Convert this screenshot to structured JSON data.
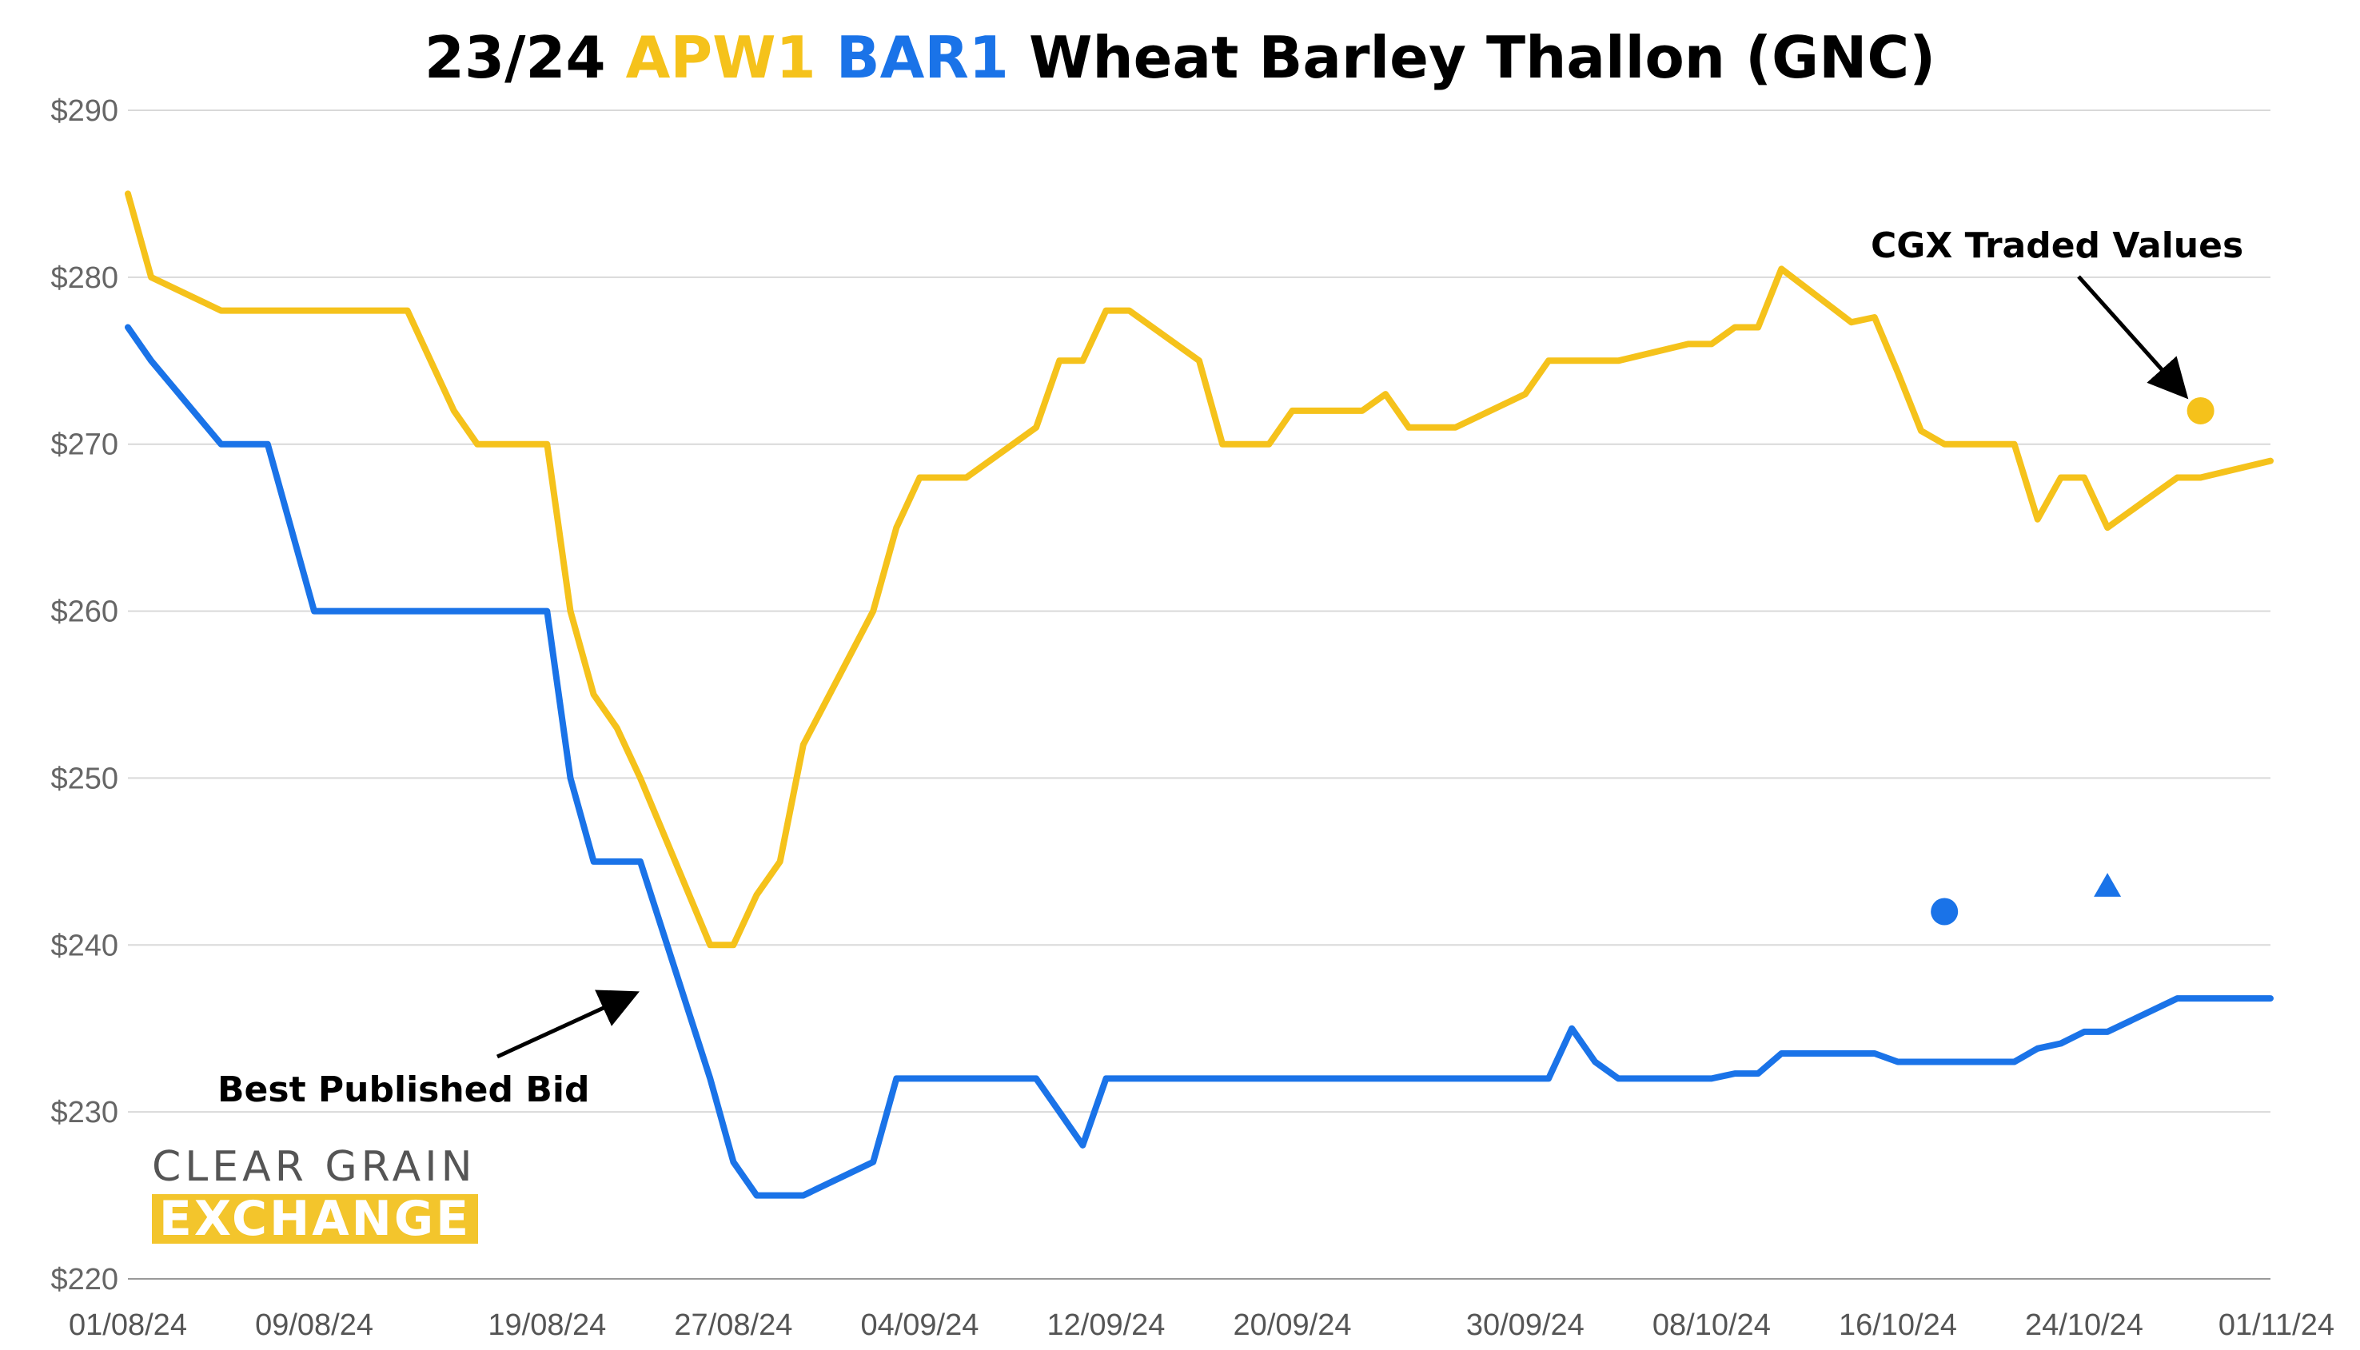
{
  "title": {
    "part1": "23/24 ",
    "part2": "APW1",
    "part3": " ",
    "part4": "BAR1",
    "part5": " Wheat Barley Thallon (GNC)"
  },
  "colors": {
    "apw1": "#f5c21b",
    "bar1": "#1a73e8",
    "grid": "#d9d9d9"
  },
  "logo": {
    "line1": "CLEAR GRAIN",
    "line2": "EXCHANGE"
  },
  "chart_data": {
    "type": "line",
    "ylim": [
      220,
      290
    ],
    "y_ticks": [
      220,
      230,
      240,
      250,
      260,
      270,
      280,
      290
    ],
    "y_tick_labels": [
      "$220",
      "$230",
      "$240",
      "$250",
      "$260",
      "$270",
      "$280",
      "$290"
    ],
    "x_range": [
      "2024-08-01",
      "2024-11-01"
    ],
    "x_ticks": [
      "2024-08-01",
      "2024-08-09",
      "2024-08-19",
      "2024-08-27",
      "2024-09-04",
      "2024-09-12",
      "2024-09-20",
      "2024-09-30",
      "2024-10-08",
      "2024-10-16",
      "2024-10-24",
      "2024-11-01"
    ],
    "x_tick_labels": [
      "01/08/24",
      "09/08/24",
      "19/08/24",
      "27/08/24",
      "04/09/24",
      "12/09/24",
      "20/09/24",
      "30/09/24",
      "08/10/24",
      "16/10/24",
      "24/10/24",
      "01/11/24"
    ],
    "grid": true,
    "series": [
      {
        "name": "APW1",
        "color": "#f5c21b",
        "points": [
          [
            "2024-08-01",
            285
          ],
          [
            "2024-08-02",
            280
          ],
          [
            "2024-08-05",
            278
          ],
          [
            "2024-08-06",
            278
          ],
          [
            "2024-08-07",
            278
          ],
          [
            "2024-08-08",
            278
          ],
          [
            "2024-08-09",
            278
          ],
          [
            "2024-08-12",
            278
          ],
          [
            "2024-08-13",
            278
          ],
          [
            "2024-08-14",
            275
          ],
          [
            "2024-08-15",
            272
          ],
          [
            "2024-08-16",
            270
          ],
          [
            "2024-08-19",
            270
          ],
          [
            "2024-08-20",
            260
          ],
          [
            "2024-08-21",
            255
          ],
          [
            "2024-08-22",
            253
          ],
          [
            "2024-08-23",
            250
          ],
          [
            "2024-08-26",
            240
          ],
          [
            "2024-08-27",
            240
          ],
          [
            "2024-08-28",
            243
          ],
          [
            "2024-08-29",
            245
          ],
          [
            "2024-08-30",
            252
          ],
          [
            "2024-09-02",
            260
          ],
          [
            "2024-09-03",
            265
          ],
          [
            "2024-09-04",
            268
          ],
          [
            "2024-09-05",
            268
          ],
          [
            "2024-09-06",
            268
          ],
          [
            "2024-09-09",
            271
          ],
          [
            "2024-09-10",
            275
          ],
          [
            "2024-09-11",
            275
          ],
          [
            "2024-09-12",
            278
          ],
          [
            "2024-09-13",
            278
          ],
          [
            "2024-09-16",
            275
          ],
          [
            "2024-09-17",
            270
          ],
          [
            "2024-09-18",
            270
          ],
          [
            "2024-09-19",
            270
          ],
          [
            "2024-09-20",
            272
          ],
          [
            "2024-09-23",
            272
          ],
          [
            "2024-09-24",
            273
          ],
          [
            "2024-09-25",
            271
          ],
          [
            "2024-09-26",
            271
          ],
          [
            "2024-09-27",
            271
          ],
          [
            "2024-09-30",
            273
          ],
          [
            "2024-10-01",
            275
          ],
          [
            "2024-10-02",
            275
          ],
          [
            "2024-10-03",
            275
          ],
          [
            "2024-10-04",
            275
          ],
          [
            "2024-10-07",
            276
          ],
          [
            "2024-10-08",
            276
          ],
          [
            "2024-10-09",
            277
          ],
          [
            "2024-10-10",
            277
          ],
          [
            "2024-10-11",
            280.5
          ],
          [
            "2024-10-14",
            277.3
          ],
          [
            "2024-10-15",
            277.6
          ],
          [
            "2024-10-16",
            274.3
          ],
          [
            "2024-10-17",
            270.8
          ],
          [
            "2024-10-18",
            270
          ],
          [
            "2024-10-21",
            270
          ],
          [
            "2024-10-22",
            265.5
          ],
          [
            "2024-10-23",
            268
          ],
          [
            "2024-10-24",
            268
          ],
          [
            "2024-10-25",
            265
          ],
          [
            "2024-10-28",
            268
          ],
          [
            "2024-10-29",
            268
          ],
          [
            "2024-11-01",
            269
          ]
        ],
        "traded_points": [
          {
            "date": "2024-10-29",
            "value": 272,
            "marker": "circle"
          }
        ]
      },
      {
        "name": "BAR1",
        "color": "#1a73e8",
        "points": [
          [
            "2024-08-01",
            277
          ],
          [
            "2024-08-02",
            275
          ],
          [
            "2024-08-05",
            270
          ],
          [
            "2024-08-06",
            270
          ],
          [
            "2024-08-07",
            270
          ],
          [
            "2024-08-08",
            265
          ],
          [
            "2024-08-09",
            260
          ],
          [
            "2024-08-12",
            260
          ],
          [
            "2024-08-13",
            260
          ],
          [
            "2024-08-14",
            260
          ],
          [
            "2024-08-15",
            260
          ],
          [
            "2024-08-16",
            260
          ],
          [
            "2024-08-19",
            260
          ],
          [
            "2024-08-20",
            250
          ],
          [
            "2024-08-21",
            245
          ],
          [
            "2024-08-22",
            245
          ],
          [
            "2024-08-23",
            245
          ],
          [
            "2024-08-26",
            232
          ],
          [
            "2024-08-27",
            227
          ],
          [
            "2024-08-28",
            225
          ],
          [
            "2024-08-29",
            225
          ],
          [
            "2024-08-30",
            225
          ],
          [
            "2024-09-02",
            227
          ],
          [
            "2024-09-03",
            232
          ],
          [
            "2024-09-04",
            232
          ],
          [
            "2024-09-05",
            232
          ],
          [
            "2024-09-06",
            232
          ],
          [
            "2024-09-09",
            232
          ],
          [
            "2024-09-10",
            230
          ],
          [
            "2024-09-11",
            228
          ],
          [
            "2024-09-12",
            232
          ],
          [
            "2024-09-13",
            232
          ],
          [
            "2024-09-16",
            232
          ],
          [
            "2024-09-17",
            232
          ],
          [
            "2024-09-18",
            232
          ],
          [
            "2024-09-19",
            232
          ],
          [
            "2024-09-20",
            232
          ],
          [
            "2024-09-23",
            232
          ],
          [
            "2024-09-24",
            232
          ],
          [
            "2024-09-25",
            232
          ],
          [
            "2024-09-26",
            232
          ],
          [
            "2024-09-27",
            232
          ],
          [
            "2024-09-30",
            232
          ],
          [
            "2024-10-01",
            232
          ],
          [
            "2024-10-02",
            235
          ],
          [
            "2024-10-03",
            233
          ],
          [
            "2024-10-04",
            232
          ],
          [
            "2024-10-07",
            232
          ],
          [
            "2024-10-08",
            232
          ],
          [
            "2024-10-09",
            232.3
          ],
          [
            "2024-10-10",
            232.3
          ],
          [
            "2024-10-11",
            233.5
          ],
          [
            "2024-10-14",
            233.5
          ],
          [
            "2024-10-15",
            233.5
          ],
          [
            "2024-10-16",
            233
          ],
          [
            "2024-10-17",
            233
          ],
          [
            "2024-10-18",
            233
          ],
          [
            "2024-10-21",
            233
          ],
          [
            "2024-10-22",
            233.8
          ],
          [
            "2024-10-23",
            234.1
          ],
          [
            "2024-10-24",
            234.8
          ],
          [
            "2024-10-25",
            234.8
          ],
          [
            "2024-10-28",
            236.8
          ],
          [
            "2024-10-29",
            236.8
          ],
          [
            "2024-11-01",
            236.8
          ]
        ],
        "traded_points": [
          {
            "date": "2024-10-18",
            "value": 242,
            "marker": "circle"
          },
          {
            "date": "2024-10-25",
            "value": 243.5,
            "marker": "triangle"
          }
        ]
      }
    ],
    "annotations": [
      {
        "text": "CGX Traded Values",
        "points_to_series": "APW1",
        "points_to_date": "2024-10-29",
        "points_to_value": 272
      },
      {
        "text": "Best Published Bid",
        "points_to_series": "BAR1",
        "points_to_date": "2024-08-23",
        "points_to_value": 237.5
      }
    ]
  }
}
